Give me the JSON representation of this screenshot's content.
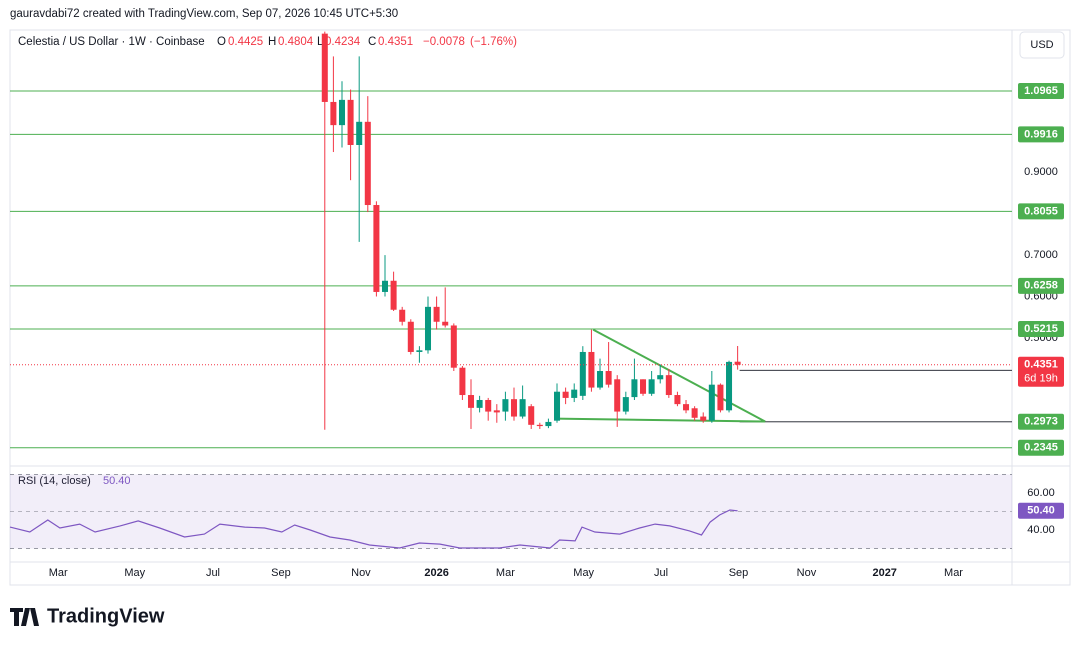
{
  "header": {
    "credit": "gauravdabi72 created with TradingView.com, Sep 07, 2026 10:45 UTC+5:30",
    "symbol": "Celestia / US Dollar · 1W · Coinbase",
    "o": "O",
    "h": "H",
    "l": "L",
    "c": "C",
    "change": {
      "value": -0.0078,
      "label": "−0.0078"
    },
    "change_pct": {
      "value": -1.76,
      "label": "(−1.76%)"
    },
    "currency": "USD",
    "countdown": "6d 19h",
    "logo": "TradingView"
  },
  "chart_data": {
    "type": "candlestick",
    "open": [
      1.235,
      1.07,
      1.014,
      1.075,
      0.966,
      1.022,
      0.821,
      0.611,
      0.638,
      0.568,
      0.539,
      0.466,
      0.47,
      0.575,
      0.539,
      0.53,
      0.428,
      0.362,
      0.331,
      0.35,
      0.325,
      0.322,
      0.352,
      0.31,
      0.335,
      0.29,
      0.287,
      0.3,
      0.37,
      0.355,
      0.36,
      0.466,
      0.38,
      0.42,
      0.4,
      0.322,
      0.357,
      0.4,
      0.365,
      0.4,
      0.41,
      0.362,
      0.34,
      0.33,
      0.31,
      0.3,
      0.387,
      0.325,
      0.4425
    ],
    "high": [
      1.24,
      1.18,
      1.12,
      1.1,
      1.18,
      1.084,
      0.83,
      0.7,
      0.66,
      0.575,
      0.545,
      0.48,
      0.6,
      0.6,
      0.622,
      0.535,
      0.432,
      0.4,
      0.36,
      0.355,
      0.34,
      0.37,
      0.38,
      0.385,
      0.34,
      0.295,
      0.305,
      0.39,
      0.38,
      0.39,
      0.48,
      0.52,
      0.45,
      0.49,
      0.41,
      0.37,
      0.45,
      0.4,
      0.42,
      0.435,
      0.425,
      0.37,
      0.35,
      0.335,
      0.32,
      0.42,
      0.39,
      0.445,
      0.4804
    ],
    "low": [
      0.278,
      0.949,
      0.96,
      0.881,
      0.732,
      0.804,
      0.6,
      0.6,
      0.565,
      0.53,
      0.46,
      0.44,
      0.462,
      0.52,
      0.525,
      0.42,
      0.35,
      0.28,
      0.32,
      0.3,
      0.295,
      0.3,
      0.3,
      0.305,
      0.28,
      0.28,
      0.282,
      0.295,
      0.34,
      0.345,
      0.35,
      0.37,
      0.375,
      0.38,
      0.285,
      0.315,
      0.35,
      0.36,
      0.36,
      0.39,
      0.355,
      0.335,
      0.318,
      0.3,
      0.295,
      0.295,
      0.32,
      0.32,
      0.4234
    ],
    "close": [
      1.07,
      1.014,
      1.075,
      0.966,
      1.022,
      0.821,
      0.611,
      0.638,
      0.568,
      0.539,
      0.466,
      0.47,
      0.575,
      0.539,
      0.53,
      0.428,
      0.362,
      0.331,
      0.35,
      0.322,
      0.32,
      0.352,
      0.31,
      0.352,
      0.29,
      0.287,
      0.297,
      0.37,
      0.355,
      0.375,
      0.466,
      0.38,
      0.42,
      0.387,
      0.322,
      0.357,
      0.4,
      0.365,
      0.4,
      0.41,
      0.362,
      0.34,
      0.325,
      0.307,
      0.3,
      0.387,
      0.325,
      0.442,
      0.4351
    ],
    "up_color": "#089981",
    "down_color": "#f23645",
    "xlim": [
      -36.6,
      79.9
    ],
    "xticks": [
      {
        "value": -31.0,
        "label": "Mar"
      },
      {
        "value": -22.1,
        "label": "May"
      },
      {
        "value": -13.0,
        "label": "Jul"
      },
      {
        "value": -5.1,
        "label": "Sep"
      },
      {
        "value": 4.2,
        "label": "Nov"
      },
      {
        "value": 13.0,
        "label": "2026"
      },
      {
        "value": 21.0,
        "label": "Mar"
      },
      {
        "value": 30.1,
        "label": "May"
      },
      {
        "value": 39.1,
        "label": "Jul"
      },
      {
        "value": 48.1,
        "label": "Sep"
      },
      {
        "value": 56.0,
        "label": "Nov"
      },
      {
        "value": 65.1,
        "label": "2027"
      },
      {
        "value": 73.1,
        "label": "Mar"
      }
    ],
    "ylim": [
      0.2002,
      1.2438
    ],
    "yticks": [
      {
        "value": 0.9,
        "label": "0.9000"
      },
      {
        "value": 0.7,
        "label": "0.7000"
      },
      {
        "value": 0.6,
        "label": "0.6000"
      },
      {
        "value": 0.5,
        "label": "0.5000"
      }
    ],
    "levels": [
      1.0965,
      0.9916,
      0.8055,
      0.6258,
      0.5215,
      0.2345
    ],
    "price_lines": [
      0.4217,
      0.2973
    ],
    "level_color": "#4caf50",
    "trendlines": [
      {
        "x": [
          31.2,
          51.2
        ],
        "y": [
          0.52,
          0.298
        ]
      },
      {
        "x": [
          26.9,
          51.2
        ],
        "y": [
          0.305,
          0.298
        ]
      }
    ],
    "rsi": {
      "name": "RSI (14, close)",
      "color": "#7e57c2",
      "x": [
        -36.6,
        -34.3,
        -32.2,
        -30.8,
        -28.5,
        -26.7,
        -23.8,
        -21.7,
        -19.2,
        -16.3,
        -14.0,
        -12.2,
        -9.3,
        -7.0,
        -5.0,
        -3.5,
        -1.7,
        0.6,
        2.9,
        5.2,
        8.7,
        11.0,
        13.4,
        15.7,
        20.3,
        22.7,
        26.2,
        27.3,
        29.1,
        29.9,
        31.4,
        34.3,
        36.6,
        38.4,
        40.1,
        42.4,
        43.8,
        44.8,
        45.9,
        47.1,
        48.0
      ],
      "values": [
        41.6,
        38.9,
        45.4,
        41.1,
        43.2,
        38.9,
        42.2,
        44.9,
        41.1,
        36.2,
        37.8,
        43.2,
        41.6,
        41.1,
        38.9,
        42.7,
        40.0,
        36.2,
        34.6,
        31.9,
        30.3,
        33.0,
        32.4,
        30.3,
        30.3,
        31.9,
        30.3,
        34.6,
        34.1,
        41.6,
        38.9,
        37.8,
        41.1,
        43.2,
        42.2,
        39.5,
        37.3,
        44.3,
        48.1,
        50.8,
        50.4
      ],
      "value_labels": [
        null,
        null,
        null,
        null,
        null,
        null,
        null,
        null,
        null,
        null,
        null,
        null,
        null,
        null,
        null,
        null,
        null,
        null,
        null,
        null,
        null,
        null,
        null,
        null,
        null,
        null,
        null,
        null,
        null,
        null,
        null,
        null,
        null,
        null,
        null,
        null,
        null,
        null,
        null,
        null,
        "50.40"
      ],
      "ylim": [
        23.8,
        73.5
      ],
      "yticks": [
        {
          "value": 60,
          "label": "60.00"
        },
        {
          "value": 40,
          "label": "40.00"
        }
      ],
      "band": [
        30,
        70
      ],
      "midline": 50
    }
  }
}
